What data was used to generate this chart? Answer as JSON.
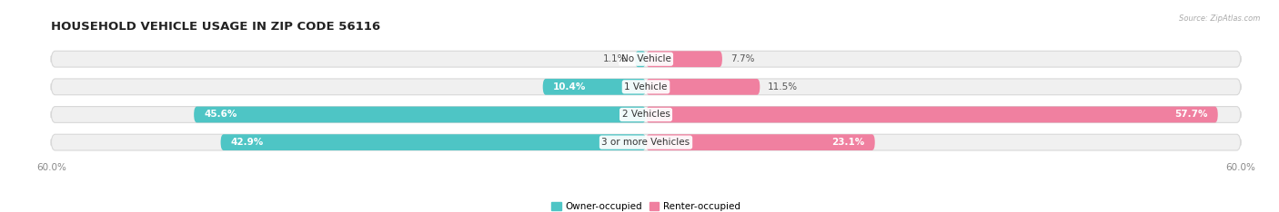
{
  "title": "HOUSEHOLD VEHICLE USAGE IN ZIP CODE 56116",
  "source": "Source: ZipAtlas.com",
  "categories": [
    "No Vehicle",
    "1 Vehicle",
    "2 Vehicles",
    "3 or more Vehicles"
  ],
  "owner_values": [
    1.1,
    10.4,
    45.6,
    42.9
  ],
  "renter_values": [
    7.7,
    11.5,
    57.7,
    23.1
  ],
  "owner_color": "#4ec5c5",
  "renter_color": "#f080a0",
  "bar_bg_color": "#f0f0f0",
  "bar_outline_color": "#d8d8d8",
  "axis_max": 60.0,
  "title_fontsize": 9.5,
  "label_fontsize": 7.5,
  "tick_fontsize": 7.5,
  "category_fontsize": 7.5,
  "legend_fontsize": 7.5,
  "background_color": "#ffffff"
}
